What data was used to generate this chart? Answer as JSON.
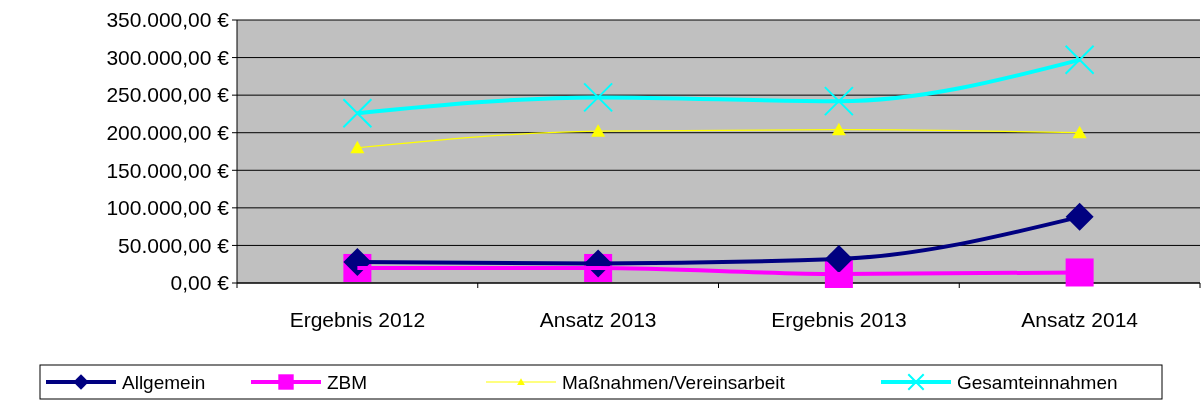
{
  "chart_data": {
    "type": "line",
    "categories": [
      "Ergebnis 2012",
      "Ansatz 2013",
      "Ergebnis 2013",
      "Ansatz 2014"
    ],
    "series": [
      {
        "name": "Allgemein",
        "color": "#000080",
        "marker": "diamond",
        "values": [
          28000,
          26000,
          32000,
          88000
        ]
      },
      {
        "name": "ZBM",
        "color": "#ff00ff",
        "marker": "square",
        "values": [
          20000,
          20000,
          12000,
          14000
        ]
      },
      {
        "name": "Maßnahmen/Vereinsarbeit",
        "color": "#ffff00",
        "marker": "triangle",
        "values": [
          180000,
          202000,
          204000,
          200000
        ]
      },
      {
        "name": "Gesamteinnahmen",
        "color": "#00ffff",
        "marker": "cross",
        "values": [
          226000,
          247000,
          242000,
          297000
        ]
      }
    ],
    "ylim": [
      0,
      350000
    ],
    "yticks": [
      {
        "value": 0,
        "label": "0,00 €"
      },
      {
        "value": 50000,
        "label": "50.000,00 €"
      },
      {
        "value": 100000,
        "label": "100.000,00 €"
      },
      {
        "value": 150000,
        "label": "150.000,00 €"
      },
      {
        "value": 200000,
        "label": "200.000,00 €"
      },
      {
        "value": 250000,
        "label": "250.000,00 €"
      },
      {
        "value": 300000,
        "label": "300.000,00 €"
      },
      {
        "value": 350000,
        "label": "350.000,00 €"
      }
    ],
    "grid": "y",
    "legend": "bottom"
  }
}
